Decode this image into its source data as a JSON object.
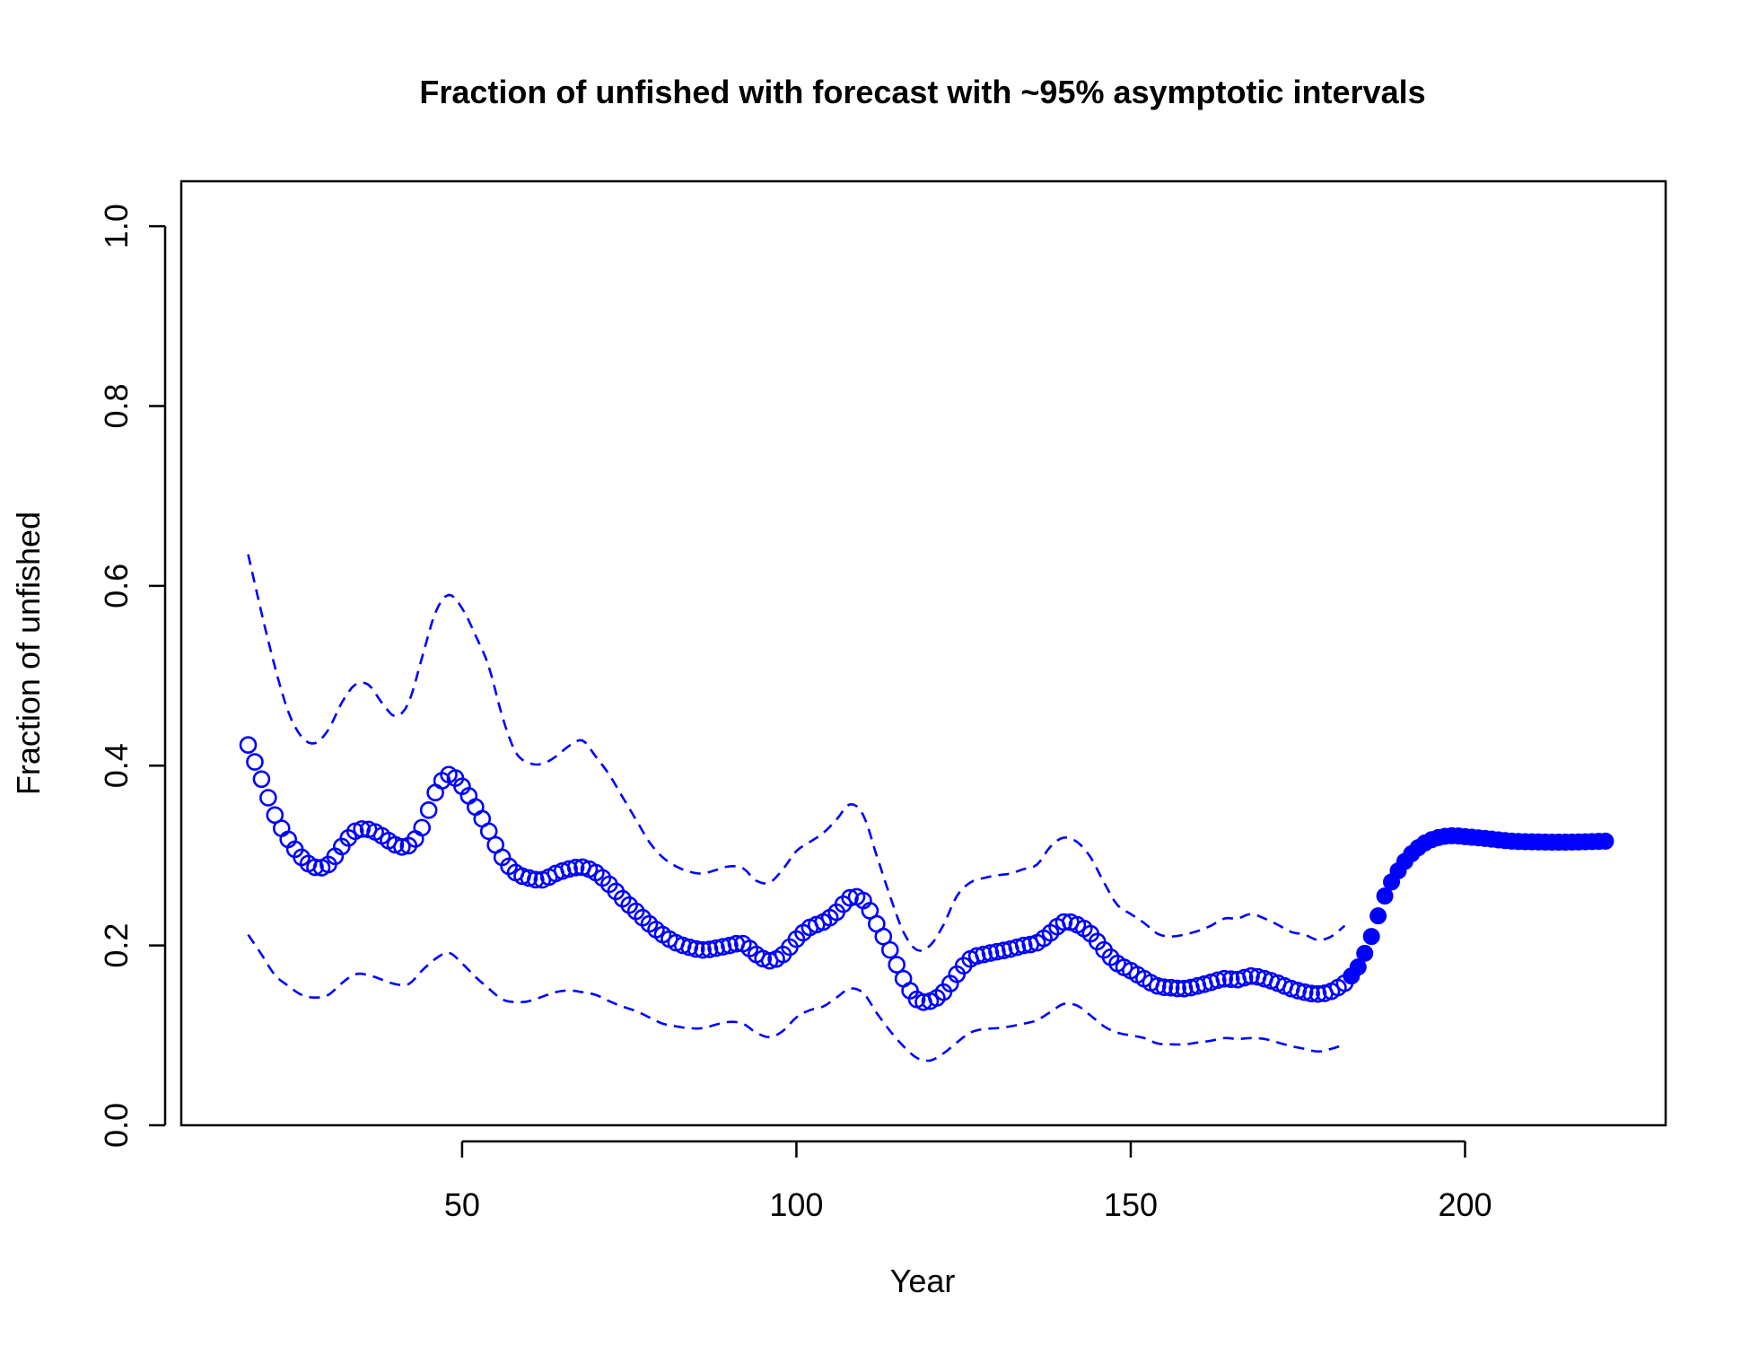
{
  "chart_data": {
    "type": "line",
    "title": "Fraction of unfished with forecast with ~95% asymptotic intervals",
    "xlabel": "Year",
    "ylabel": "Fraction of unfished",
    "xlim": [
      8,
      230
    ],
    "ylim": [
      0,
      1.05
    ],
    "x_ticks": [
      50,
      100,
      150,
      200
    ],
    "y_ticks": [
      0.0,
      0.2,
      0.4,
      0.6,
      0.8,
      1.0
    ],
    "y_tick_labels": [
      "0.0",
      "0.2",
      "0.4",
      "0.6",
      "0.8",
      "1.0"
    ],
    "grid": false,
    "legend": "none",
    "colors": {
      "series": "#0000ff",
      "axis": "#000000"
    },
    "estimate_knots": [
      [
        18,
        0.423
      ],
      [
        20,
        0.385
      ],
      [
        22,
        0.345
      ],
      [
        24,
        0.318
      ],
      [
        26,
        0.298
      ],
      [
        28,
        0.287
      ],
      [
        30,
        0.29
      ],
      [
        32,
        0.31
      ],
      [
        34,
        0.327
      ],
      [
        36,
        0.329
      ],
      [
        38,
        0.322
      ],
      [
        40,
        0.312
      ],
      [
        42,
        0.311
      ],
      [
        44,
        0.331
      ],
      [
        46,
        0.37
      ],
      [
        48,
        0.39
      ],
      [
        50,
        0.377
      ],
      [
        52,
        0.354
      ],
      [
        54,
        0.327
      ],
      [
        56,
        0.298
      ],
      [
        58,
        0.281
      ],
      [
        60,
        0.275
      ],
      [
        62,
        0.273
      ],
      [
        64,
        0.28
      ],
      [
        66,
        0.285
      ],
      [
        68,
        0.287
      ],
      [
        70,
        0.281
      ],
      [
        72,
        0.268
      ],
      [
        74,
        0.252
      ],
      [
        76,
        0.238
      ],
      [
        78,
        0.224
      ],
      [
        80,
        0.212
      ],
      [
        82,
        0.203
      ],
      [
        84,
        0.198
      ],
      [
        86,
        0.195
      ],
      [
        88,
        0.197
      ],
      [
        90,
        0.2
      ],
      [
        92,
        0.202
      ],
      [
        94,
        0.19
      ],
      [
        96,
        0.183
      ],
      [
        98,
        0.19
      ],
      [
        100,
        0.207
      ],
      [
        102,
        0.22
      ],
      [
        104,
        0.226
      ],
      [
        106,
        0.237
      ],
      [
        108,
        0.253
      ],
      [
        110,
        0.25
      ],
      [
        112,
        0.224
      ],
      [
        114,
        0.195
      ],
      [
        116,
        0.163
      ],
      [
        118,
        0.14
      ],
      [
        120,
        0.138
      ],
      [
        122,
        0.148
      ],
      [
        124,
        0.168
      ],
      [
        126,
        0.185
      ],
      [
        128,
        0.19
      ],
      [
        130,
        0.193
      ],
      [
        132,
        0.196
      ],
      [
        134,
        0.2
      ],
      [
        136,
        0.203
      ],
      [
        138,
        0.214
      ],
      [
        140,
        0.226
      ],
      [
        142,
        0.223
      ],
      [
        144,
        0.213
      ],
      [
        146,
        0.195
      ],
      [
        148,
        0.18
      ],
      [
        150,
        0.172
      ],
      [
        152,
        0.163
      ],
      [
        154,
        0.155
      ],
      [
        156,
        0.153
      ],
      [
        158,
        0.152
      ],
      [
        160,
        0.155
      ],
      [
        162,
        0.159
      ],
      [
        164,
        0.163
      ],
      [
        166,
        0.162
      ],
      [
        168,
        0.166
      ],
      [
        170,
        0.163
      ],
      [
        172,
        0.158
      ],
      [
        174,
        0.152
      ],
      [
        176,
        0.148
      ],
      [
        178,
        0.146
      ],
      [
        180,
        0.149
      ],
      [
        182,
        0.158
      ]
    ],
    "forecast_knots": [
      [
        182,
        0.158
      ],
      [
        184,
        0.176
      ],
      [
        186,
        0.21
      ],
      [
        188,
        0.255
      ],
      [
        190,
        0.283
      ],
      [
        192,
        0.302
      ],
      [
        194,
        0.314
      ],
      [
        196,
        0.32
      ],
      [
        198,
        0.322
      ],
      [
        200,
        0.321
      ],
      [
        203,
        0.319
      ],
      [
        207,
        0.316
      ],
      [
        212,
        0.315
      ],
      [
        216,
        0.315
      ],
      [
        221,
        0.316
      ]
    ],
    "upper_ci_knots": [
      [
        18,
        0.635
      ],
      [
        20,
        0.57
      ],
      [
        22,
        0.51
      ],
      [
        24,
        0.46
      ],
      [
        26,
        0.432
      ],
      [
        28,
        0.425
      ],
      [
        30,
        0.44
      ],
      [
        32,
        0.47
      ],
      [
        34,
        0.49
      ],
      [
        36,
        0.49
      ],
      [
        38,
        0.47
      ],
      [
        40,
        0.455
      ],
      [
        42,
        0.47
      ],
      [
        44,
        0.52
      ],
      [
        46,
        0.57
      ],
      [
        48,
        0.59
      ],
      [
        50,
        0.575
      ],
      [
        52,
        0.545
      ],
      [
        54,
        0.51
      ],
      [
        56,
        0.455
      ],
      [
        58,
        0.415
      ],
      [
        60,
        0.403
      ],
      [
        62,
        0.402
      ],
      [
        64,
        0.41
      ],
      [
        66,
        0.422
      ],
      [
        68,
        0.428
      ],
      [
        70,
        0.41
      ],
      [
        72,
        0.39
      ],
      [
        74,
        0.365
      ],
      [
        76,
        0.34
      ],
      [
        78,
        0.315
      ],
      [
        80,
        0.298
      ],
      [
        82,
        0.288
      ],
      [
        84,
        0.282
      ],
      [
        86,
        0.28
      ],
      [
        88,
        0.284
      ],
      [
        90,
        0.288
      ],
      [
        92,
        0.286
      ],
      [
        94,
        0.272
      ],
      [
        96,
        0.27
      ],
      [
        98,
        0.285
      ],
      [
        100,
        0.305
      ],
      [
        102,
        0.315
      ],
      [
        104,
        0.325
      ],
      [
        106,
        0.34
      ],
      [
        108,
        0.357
      ],
      [
        110,
        0.345
      ],
      [
        112,
        0.3
      ],
      [
        114,
        0.255
      ],
      [
        116,
        0.215
      ],
      [
        118,
        0.195
      ],
      [
        120,
        0.2
      ],
      [
        122,
        0.223
      ],
      [
        124,
        0.255
      ],
      [
        126,
        0.27
      ],
      [
        128,
        0.275
      ],
      [
        130,
        0.278
      ],
      [
        132,
        0.28
      ],
      [
        134,
        0.285
      ],
      [
        136,
        0.29
      ],
      [
        138,
        0.31
      ],
      [
        140,
        0.32
      ],
      [
        142,
        0.315
      ],
      [
        144,
        0.298
      ],
      [
        146,
        0.27
      ],
      [
        148,
        0.245
      ],
      [
        150,
        0.235
      ],
      [
        152,
        0.225
      ],
      [
        154,
        0.213
      ],
      [
        156,
        0.21
      ],
      [
        158,
        0.212
      ],
      [
        160,
        0.216
      ],
      [
        162,
        0.222
      ],
      [
        164,
        0.23
      ],
      [
        166,
        0.23
      ],
      [
        168,
        0.235
      ],
      [
        170,
        0.23
      ],
      [
        172,
        0.223
      ],
      [
        174,
        0.215
      ],
      [
        176,
        0.212
      ],
      [
        178,
        0.206
      ],
      [
        180,
        0.21
      ],
      [
        182,
        0.222
      ]
    ],
    "lower_ci_knots": [
      [
        18,
        0.212
      ],
      [
        20,
        0.19
      ],
      [
        22,
        0.167
      ],
      [
        24,
        0.155
      ],
      [
        26,
        0.145
      ],
      [
        28,
        0.142
      ],
      [
        30,
        0.145
      ],
      [
        32,
        0.158
      ],
      [
        34,
        0.168
      ],
      [
        36,
        0.167
      ],
      [
        38,
        0.162
      ],
      [
        40,
        0.157
      ],
      [
        42,
        0.157
      ],
      [
        44,
        0.172
      ],
      [
        46,
        0.185
      ],
      [
        48,
        0.192
      ],
      [
        50,
        0.18
      ],
      [
        52,
        0.165
      ],
      [
        54,
        0.152
      ],
      [
        56,
        0.14
      ],
      [
        58,
        0.137
      ],
      [
        60,
        0.138
      ],
      [
        62,
        0.143
      ],
      [
        64,
        0.148
      ],
      [
        66,
        0.15
      ],
      [
        68,
        0.148
      ],
      [
        70,
        0.145
      ],
      [
        72,
        0.138
      ],
      [
        74,
        0.132
      ],
      [
        76,
        0.127
      ],
      [
        78,
        0.12
      ],
      [
        80,
        0.113
      ],
      [
        82,
        0.11
      ],
      [
        84,
        0.108
      ],
      [
        86,
        0.108
      ],
      [
        88,
        0.112
      ],
      [
        90,
        0.115
      ],
      [
        92,
        0.113
      ],
      [
        94,
        0.103
      ],
      [
        96,
        0.098
      ],
      [
        98,
        0.105
      ],
      [
        100,
        0.12
      ],
      [
        102,
        0.128
      ],
      [
        104,
        0.132
      ],
      [
        106,
        0.142
      ],
      [
        108,
        0.152
      ],
      [
        110,
        0.147
      ],
      [
        112,
        0.125
      ],
      [
        114,
        0.105
      ],
      [
        116,
        0.088
      ],
      [
        118,
        0.075
      ],
      [
        120,
        0.072
      ],
      [
        122,
        0.08
      ],
      [
        124,
        0.092
      ],
      [
        126,
        0.103
      ],
      [
        128,
        0.107
      ],
      [
        130,
        0.108
      ],
      [
        132,
        0.11
      ],
      [
        134,
        0.113
      ],
      [
        136,
        0.117
      ],
      [
        138,
        0.126
      ],
      [
        140,
        0.135
      ],
      [
        142,
        0.133
      ],
      [
        144,
        0.122
      ],
      [
        146,
        0.11
      ],
      [
        148,
        0.103
      ],
      [
        150,
        0.1
      ],
      [
        152,
        0.097
      ],
      [
        154,
        0.091
      ],
      [
        156,
        0.09
      ],
      [
        158,
        0.09
      ],
      [
        160,
        0.092
      ],
      [
        162,
        0.094
      ],
      [
        164,
        0.097
      ],
      [
        166,
        0.096
      ],
      [
        168,
        0.097
      ],
      [
        170,
        0.096
      ],
      [
        172,
        0.092
      ],
      [
        174,
        0.088
      ],
      [
        176,
        0.085
      ],
      [
        178,
        0.082
      ],
      [
        180,
        0.085
      ],
      [
        182,
        0.09
      ]
    ]
  }
}
